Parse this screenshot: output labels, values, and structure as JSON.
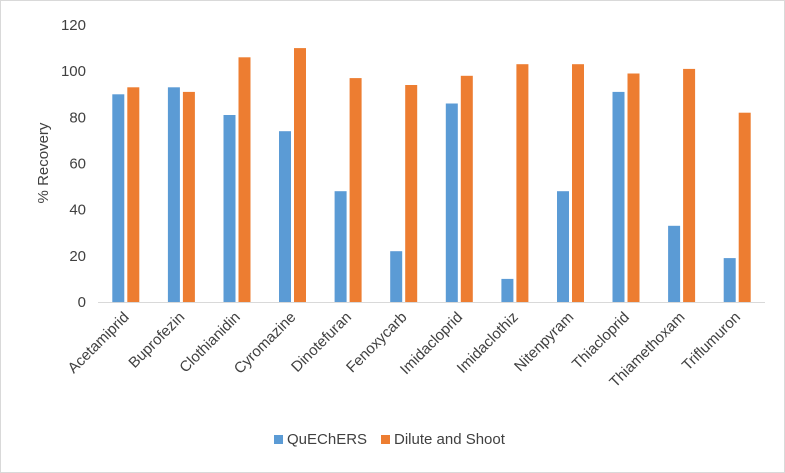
{
  "chart_data": {
    "type": "bar",
    "title": "",
    "xlabel": "",
    "ylabel": "% Recovery",
    "ylim": [
      0,
      120
    ],
    "yticks": [
      0,
      20,
      40,
      60,
      80,
      100,
      120
    ],
    "grid": false,
    "legend_position": "bottom",
    "categories": [
      "Acetamiprid",
      "Buprofezin",
      "Clothianidin",
      "Cyromazine",
      "Dinotefuran",
      "Fenoxycarb",
      "Imidacloprid",
      "Imidaclothiz",
      "Nitenpyram",
      "Thiacloprid",
      "Thiamethoxam",
      "Triflumuron"
    ],
    "series": [
      {
        "name": "QuEChERS",
        "color": "#5b9bd5",
        "values": [
          90,
          93,
          81,
          74,
          48,
          22,
          86,
          10,
          48,
          91,
          33,
          19
        ]
      },
      {
        "name": "Dilute and Shoot",
        "color": "#ed7d31",
        "values": [
          93,
          91,
          106,
          110,
          97,
          94,
          98,
          103,
          103,
          99,
          101,
          82
        ]
      }
    ]
  }
}
